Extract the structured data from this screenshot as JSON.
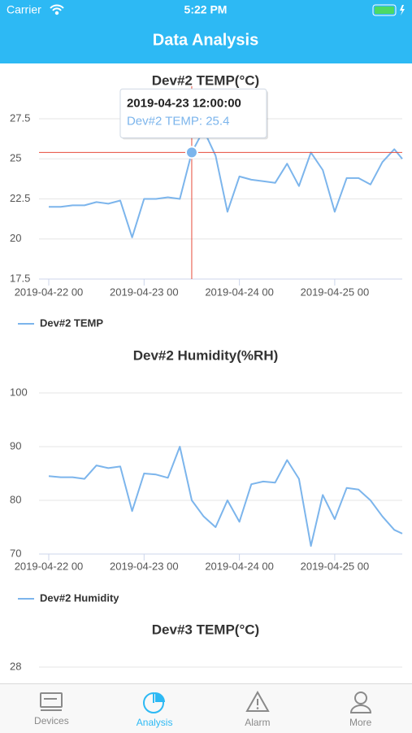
{
  "status_bar": {
    "carrier": "Carrier",
    "time": "5:22 PM"
  },
  "header": {
    "title": "Data Analysis"
  },
  "chart_data": [
    {
      "type": "line",
      "title": "Dev#2 TEMP(°C)",
      "x": [
        "2019-04-22 00",
        "2019-04-22 03",
        "2019-04-22 06",
        "2019-04-22 09",
        "2019-04-22 12",
        "2019-04-22 15",
        "2019-04-22 18",
        "2019-04-22 21",
        "2019-04-23 00",
        "2019-04-23 03",
        "2019-04-23 06",
        "2019-04-23 09",
        "2019-04-23 12",
        "2019-04-23 15",
        "2019-04-23 18",
        "2019-04-23 21",
        "2019-04-24 00",
        "2019-04-24 03",
        "2019-04-24 06",
        "2019-04-24 09",
        "2019-04-24 12",
        "2019-04-24 15",
        "2019-04-24 18",
        "2019-04-24 21",
        "2019-04-25 00",
        "2019-04-25 03",
        "2019-04-25 06",
        "2019-04-25 09",
        "2019-04-25 12",
        "2019-04-25 15",
        "2019-04-25 17"
      ],
      "series": [
        {
          "name": "Dev#2 TEMP",
          "color": "#7cb5ec",
          "values": [
            22.0,
            22.0,
            22.1,
            22.1,
            22.3,
            22.2,
            22.4,
            20.1,
            22.5,
            22.5,
            22.6,
            22.5,
            25.4,
            26.8,
            25.2,
            21.7,
            23.9,
            23.7,
            23.6,
            23.5,
            24.7,
            23.3,
            25.4,
            24.3,
            21.7,
            23.8,
            23.8,
            23.4,
            24.8,
            25.6,
            25.0
          ]
        }
      ],
      "xlim": [
        "2019-04-22 00",
        "2019-04-25 17"
      ],
      "xticks": [
        "2019-04-22 00",
        "2019-04-23 00",
        "2019-04-24 00",
        "2019-04-25 00"
      ],
      "ylim": [
        17.5,
        27.5
      ],
      "yticks": [
        17.5,
        20,
        22.5,
        25,
        27.5
      ],
      "grid": true,
      "tooltip": {
        "title": "2019-04-23 12:00:00",
        "text": "Dev#2 TEMP: 25.4"
      }
    },
    {
      "type": "line",
      "title": "Dev#2 Humidity(%RH)",
      "x": [
        "2019-04-22 00",
        "2019-04-22 03",
        "2019-04-22 06",
        "2019-04-22 09",
        "2019-04-22 12",
        "2019-04-22 15",
        "2019-04-22 18",
        "2019-04-22 21",
        "2019-04-23 00",
        "2019-04-23 03",
        "2019-04-23 06",
        "2019-04-23 09",
        "2019-04-23 12",
        "2019-04-23 15",
        "2019-04-23 18",
        "2019-04-23 21",
        "2019-04-24 00",
        "2019-04-24 03",
        "2019-04-24 06",
        "2019-04-24 09",
        "2019-04-24 12",
        "2019-04-24 15",
        "2019-04-24 18",
        "2019-04-24 21",
        "2019-04-25 00",
        "2019-04-25 03",
        "2019-04-25 06",
        "2019-04-25 09",
        "2019-04-25 12",
        "2019-04-25 15",
        "2019-04-25 17"
      ],
      "series": [
        {
          "name": "Dev#2 Humidity",
          "color": "#7cb5ec",
          "values": [
            84.5,
            84.3,
            84.3,
            84.0,
            86.5,
            86.0,
            86.3,
            78.0,
            85.0,
            84.8,
            84.2,
            90.0,
            80.0,
            77.0,
            75.0,
            80.0,
            76.0,
            83.0,
            83.5,
            83.3,
            87.5,
            84.0,
            71.5,
            81.0,
            76.5,
            82.3,
            82.0,
            80.0,
            77.0,
            74.5,
            73.8
          ]
        }
      ],
      "xlim": [
        "2019-04-22 00",
        "2019-04-25 17"
      ],
      "xticks": [
        "2019-04-22 00",
        "2019-04-23 00",
        "2019-04-24 00",
        "2019-04-25 00"
      ],
      "ylim": [
        70,
        100
      ],
      "yticks": [
        70,
        80,
        90,
        100
      ],
      "grid": true
    },
    {
      "type": "line",
      "title": "Dev#3 TEMP(°C)",
      "yticks": [
        28
      ],
      "grid": true
    }
  ],
  "tab_bar": {
    "tabs": [
      "Devices",
      "Analysis",
      "Alarm",
      "More"
    ],
    "active": "Analysis"
  }
}
